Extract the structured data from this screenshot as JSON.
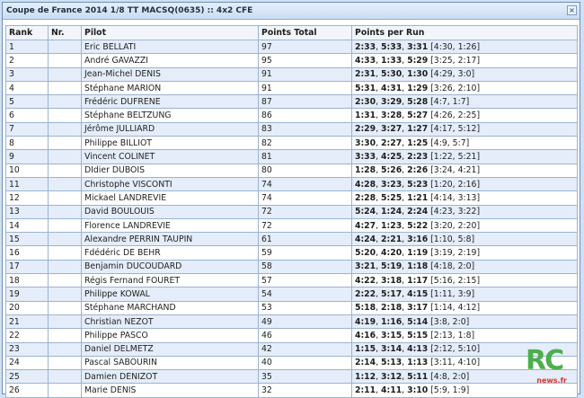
{
  "window": {
    "title": "Coupe de France 2014 1/8 TT MACSQ(0635) :: 4x2 CFE",
    "close_glyph": "×"
  },
  "table": {
    "headers": [
      "Rank",
      "Nr.",
      "Pilot",
      "Points Total",
      "Points per Run"
    ],
    "rows": [
      {
        "rank": "1",
        "nr": "",
        "pilot": "Eric BELLATI",
        "total": "97",
        "runs": [
          [
            "2:33",
            true
          ],
          ", ",
          [
            "5:33",
            true
          ],
          ", ",
          [
            "3:31",
            true
          ],
          " [4:30, 1:26]"
        ]
      },
      {
        "rank": "2",
        "nr": "",
        "pilot": "André GAVAZZI",
        "total": "95",
        "runs": [
          [
            "4:33",
            true
          ],
          ", ",
          [
            "1:33",
            true
          ],
          ", ",
          [
            "5:29",
            true
          ],
          " [3:25, 2:17]"
        ]
      },
      {
        "rank": "3",
        "nr": "",
        "pilot": "Jean-Michel DENIS",
        "total": "91",
        "runs": [
          [
            "2:31",
            true
          ],
          ", ",
          [
            "5:30",
            true
          ],
          ", ",
          [
            "1:30",
            true
          ],
          " [4:29, 3:0]"
        ]
      },
      {
        "rank": "4",
        "nr": "",
        "pilot": "Stéphane MARION",
        "total": "91",
        "runs": [
          [
            "5:31",
            true
          ],
          ", ",
          [
            "4:31",
            true
          ],
          ", ",
          [
            "1:29",
            true
          ],
          " [3:26, 2:10]"
        ]
      },
      {
        "rank": "5",
        "nr": "",
        "pilot": "Frédéric DUFRENE",
        "total": "87",
        "runs": [
          [
            "2:30",
            true
          ],
          ", ",
          [
            "3:29",
            true
          ],
          ", ",
          [
            "5:28",
            true
          ],
          " [4:7, 1:7]"
        ]
      },
      {
        "rank": "6",
        "nr": "",
        "pilot": "Stéphane BELTZUNG",
        "total": "86",
        "runs": [
          [
            "1:31",
            true
          ],
          ", ",
          [
            "3:28",
            true
          ],
          ", ",
          [
            "5:27",
            true
          ],
          " [4:26, 2:25]"
        ]
      },
      {
        "rank": "7",
        "nr": "",
        "pilot": "Jérôme JULLIARD",
        "total": "83",
        "runs": [
          [
            "2:29",
            true
          ],
          ", ",
          [
            "3:27",
            true
          ],
          ", ",
          [
            "1:27",
            true
          ],
          " [4:17, 5:12]"
        ]
      },
      {
        "rank": "8",
        "nr": "",
        "pilot": "Philippe BILLIOT",
        "total": "82",
        "runs": [
          [
            "3:30",
            true
          ],
          ", ",
          [
            "2:27",
            true
          ],
          ", ",
          [
            "1:25",
            true
          ],
          " [4:9, 5:7]"
        ]
      },
      {
        "rank": "9",
        "nr": "",
        "pilot": "Vincent COLINET",
        "total": "81",
        "runs": [
          [
            "3:33",
            true
          ],
          ", ",
          [
            "4:25",
            true
          ],
          ", ",
          [
            "2:23",
            true
          ],
          " [1:22, 5:21]"
        ]
      },
      {
        "rank": "10",
        "nr": "",
        "pilot": "DIdier DUBOIS",
        "total": "80",
        "runs": [
          [
            "1:28",
            true
          ],
          ", ",
          [
            "5:26",
            true
          ],
          ", ",
          [
            "2:26",
            true
          ],
          " [3:24, 4:21]"
        ]
      },
      {
        "rank": "11",
        "nr": "",
        "pilot": "Christophe VISCONTI",
        "total": "74",
        "runs": [
          [
            "4:28",
            true
          ],
          ", ",
          [
            "3:23",
            true
          ],
          ", ",
          [
            "5:23",
            true
          ],
          " [1:20, 2:16]"
        ]
      },
      {
        "rank": "12",
        "nr": "",
        "pilot": "Mickael LANDREVIE",
        "total": "74",
        "runs": [
          [
            "2:28",
            true
          ],
          ", ",
          [
            "5:25",
            true
          ],
          ", ",
          [
            "1:21",
            true
          ],
          " [4:14, 3:13]"
        ]
      },
      {
        "rank": "13",
        "nr": "",
        "pilot": "David BOULOUIS",
        "total": "72",
        "runs": [
          [
            "5:24",
            true
          ],
          ", ",
          [
            "1:24",
            true
          ],
          ", ",
          [
            "2:24",
            true
          ],
          " [4:23, 3:22]"
        ]
      },
      {
        "rank": "14",
        "nr": "",
        "pilot": "Florence LANDREVIE",
        "total": "72",
        "runs": [
          [
            "4:27",
            true
          ],
          ", ",
          [
            "1:23",
            true
          ],
          ", ",
          [
            "5:22",
            true
          ],
          " [3:20, 2:20]"
        ]
      },
      {
        "rank": "15",
        "nr": "",
        "pilot": "Alexandre PERRIN TAUPIN",
        "total": "61",
        "runs": [
          [
            "4:24",
            true
          ],
          ", ",
          [
            "2:21",
            true
          ],
          ", ",
          [
            "3:16",
            true
          ],
          " [1:10, 5:8]"
        ]
      },
      {
        "rank": "16",
        "nr": "",
        "pilot": "Fdédéric DE BEHR",
        "total": "59",
        "runs": [
          [
            "5:20",
            true
          ],
          ", ",
          [
            "4:20",
            true
          ],
          ", ",
          [
            "1:19",
            true
          ],
          " [3:19, 2:19]"
        ]
      },
      {
        "rank": "17",
        "nr": "",
        "pilot": "Benjamin DUCOUDARD",
        "total": "58",
        "runs": [
          [
            "3:21",
            true
          ],
          ", ",
          [
            "5:19",
            true
          ],
          ", ",
          [
            "1:18",
            true
          ],
          " [4:18, 2:0]"
        ]
      },
      {
        "rank": "18",
        "nr": "",
        "pilot": "Régis Fernand FOURET",
        "total": "57",
        "runs": [
          [
            "4:22",
            true
          ],
          ", ",
          [
            "3:18",
            true
          ],
          ", ",
          [
            "1:17",
            true
          ],
          " [5:16, 2:15]"
        ]
      },
      {
        "rank": "19",
        "nr": "",
        "pilot": "Philippe KOWAL",
        "total": "54",
        "runs": [
          [
            "2:22",
            true
          ],
          ", ",
          [
            "5:17",
            true
          ],
          ", ",
          [
            "4:15",
            true
          ],
          " [1:11, 3:9]"
        ]
      },
      {
        "rank": "20",
        "nr": "",
        "pilot": "Stéphane MARCHAND",
        "total": "53",
        "runs": [
          [
            "5:18",
            true
          ],
          ", ",
          [
            "2:18",
            true
          ],
          ", ",
          [
            "3:17",
            true
          ],
          " [1:14, 4:12]"
        ]
      },
      {
        "rank": "21",
        "nr": "",
        "pilot": "Christian NEZOT",
        "total": "49",
        "runs": [
          [
            "4:19",
            true
          ],
          ", ",
          [
            "1:16",
            true
          ],
          ", ",
          [
            "5:14",
            true
          ],
          " [3:8, 2:0]"
        ]
      },
      {
        "rank": "22",
        "nr": "",
        "pilot": "Philippe PASCO",
        "total": "46",
        "runs": [
          [
            "4:16",
            true
          ],
          ", ",
          [
            "3:15",
            true
          ],
          ", ",
          [
            "5:15",
            true
          ],
          " [2:13, 1:8]"
        ]
      },
      {
        "rank": "23",
        "nr": "",
        "pilot": "Daniel DELMETZ",
        "total": "42",
        "runs": [
          [
            "1:15",
            true
          ],
          ", ",
          [
            "3:14",
            true
          ],
          ", ",
          [
            "4:13",
            true
          ],
          " [2:12, 5:10]"
        ]
      },
      {
        "rank": "24",
        "nr": "",
        "pilot": "Pascal SABOURIN",
        "total": "40",
        "runs": [
          [
            "2:14",
            true
          ],
          ", ",
          [
            "5:13",
            true
          ],
          ", ",
          [
            "1:13",
            true
          ],
          " [3:11, 4:10]"
        ]
      },
      {
        "rank": "25",
        "nr": "",
        "pilot": "Damien DENIZOT",
        "total": "35",
        "runs": [
          [
            "1:12",
            true
          ],
          ", ",
          [
            "3:12",
            true
          ],
          ", ",
          [
            "5:11",
            true
          ],
          " [4:8, 2:0]"
        ]
      },
      {
        "rank": "26",
        "nr": "",
        "pilot": "Marie DENIS",
        "total": "32",
        "runs": [
          [
            "2:11",
            true
          ],
          ", ",
          [
            "4:11",
            true
          ],
          ", ",
          [
            "3:10",
            true
          ],
          " [5:9, 1:9]"
        ]
      }
    ]
  },
  "logo": {
    "main": "RC",
    "sub": "news.fr"
  },
  "colors": {
    "row_alt": "#e4edf9",
    "border": "#9bb3cf",
    "logo_green": "#4cae4c",
    "logo_red": "#dd3333"
  }
}
